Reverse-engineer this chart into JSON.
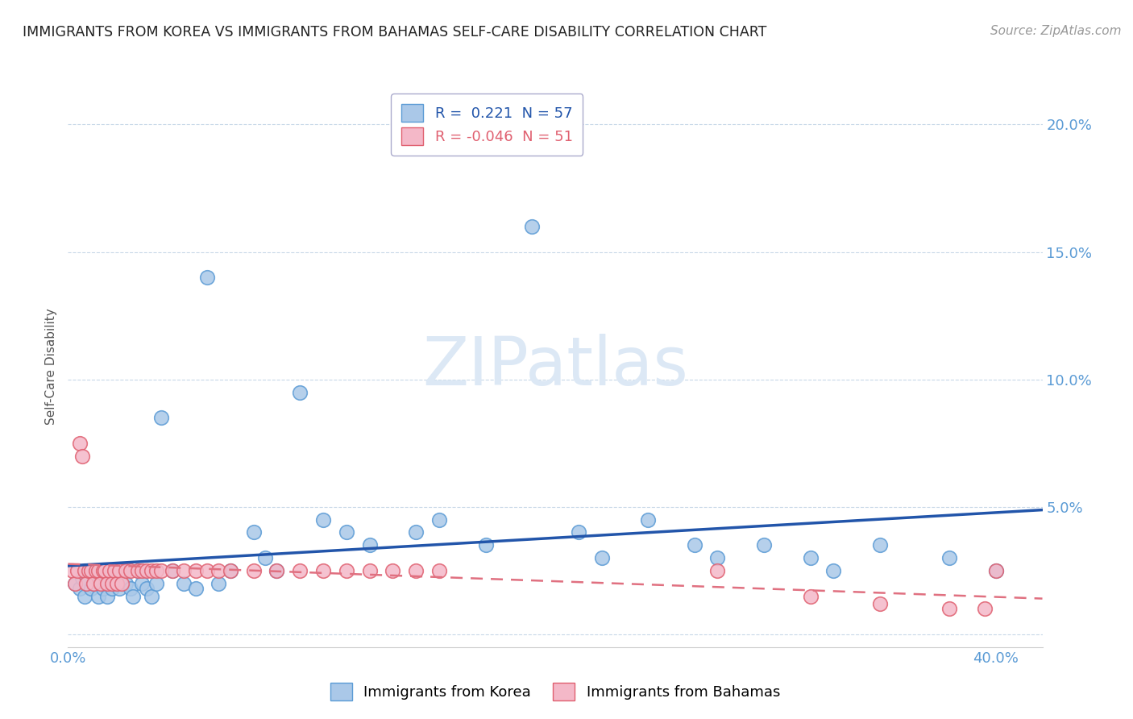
{
  "title": "IMMIGRANTS FROM KOREA VS IMMIGRANTS FROM BAHAMAS SELF-CARE DISABILITY CORRELATION CHART",
  "source": "Source: ZipAtlas.com",
  "ylabel": "Self-Care Disability",
  "xlim": [
    0.0,
    0.42
  ],
  "ylim": [
    -0.005,
    0.215
  ],
  "korea_R": 0.221,
  "korea_N": 57,
  "bahamas_R": -0.046,
  "bahamas_N": 51,
  "korea_color": "#aac8e8",
  "bahamas_color": "#f4b8c8",
  "korea_edge_color": "#5b9bd5",
  "bahamas_edge_color": "#e06070",
  "korea_line_color": "#2255aa",
  "bahamas_line_color": "#e07080",
  "watermark_color": "#dce8f5",
  "korea_scatter_x": [
    0.003,
    0.005,
    0.006,
    0.007,
    0.008,
    0.009,
    0.01,
    0.011,
    0.012,
    0.013,
    0.014,
    0.015,
    0.016,
    0.017,
    0.018,
    0.019,
    0.02,
    0.021,
    0.022,
    0.023,
    0.025,
    0.027,
    0.028,
    0.03,
    0.032,
    0.034,
    0.036,
    0.038,
    0.04,
    0.045,
    0.05,
    0.055,
    0.06,
    0.065,
    0.07,
    0.08,
    0.085,
    0.09,
    0.1,
    0.11,
    0.12,
    0.13,
    0.15,
    0.16,
    0.18,
    0.2,
    0.22,
    0.23,
    0.25,
    0.27,
    0.28,
    0.3,
    0.32,
    0.33,
    0.35,
    0.38,
    0.4
  ],
  "korea_scatter_y": [
    0.02,
    0.018,
    0.022,
    0.015,
    0.02,
    0.025,
    0.018,
    0.02,
    0.022,
    0.015,
    0.02,
    0.018,
    0.022,
    0.015,
    0.02,
    0.018,
    0.022,
    0.02,
    0.018,
    0.025,
    0.02,
    0.018,
    0.015,
    0.025,
    0.02,
    0.018,
    0.015,
    0.02,
    0.085,
    0.025,
    0.02,
    0.018,
    0.14,
    0.02,
    0.025,
    0.04,
    0.03,
    0.025,
    0.095,
    0.045,
    0.04,
    0.035,
    0.04,
    0.045,
    0.035,
    0.16,
    0.04,
    0.03,
    0.045,
    0.035,
    0.03,
    0.035,
    0.03,
    0.025,
    0.035,
    0.03,
    0.025
  ],
  "bahamas_scatter_x": [
    0.002,
    0.003,
    0.004,
    0.005,
    0.006,
    0.007,
    0.008,
    0.009,
    0.01,
    0.011,
    0.012,
    0.013,
    0.014,
    0.015,
    0.016,
    0.017,
    0.018,
    0.019,
    0.02,
    0.021,
    0.022,
    0.023,
    0.025,
    0.027,
    0.03,
    0.032,
    0.034,
    0.036,
    0.038,
    0.04,
    0.045,
    0.05,
    0.055,
    0.06,
    0.065,
    0.07,
    0.08,
    0.09,
    0.1,
    0.11,
    0.12,
    0.13,
    0.14,
    0.15,
    0.16,
    0.28,
    0.32,
    0.35,
    0.38,
    0.395,
    0.4
  ],
  "bahamas_scatter_y": [
    0.025,
    0.02,
    0.025,
    0.075,
    0.07,
    0.025,
    0.02,
    0.025,
    0.025,
    0.02,
    0.025,
    0.025,
    0.02,
    0.025,
    0.025,
    0.02,
    0.025,
    0.02,
    0.025,
    0.02,
    0.025,
    0.02,
    0.025,
    0.025,
    0.025,
    0.025,
    0.025,
    0.025,
    0.025,
    0.025,
    0.025,
    0.025,
    0.025,
    0.025,
    0.025,
    0.025,
    0.025,
    0.025,
    0.025,
    0.025,
    0.025,
    0.025,
    0.025,
    0.025,
    0.025,
    0.025,
    0.015,
    0.012,
    0.01,
    0.01,
    0.025
  ]
}
